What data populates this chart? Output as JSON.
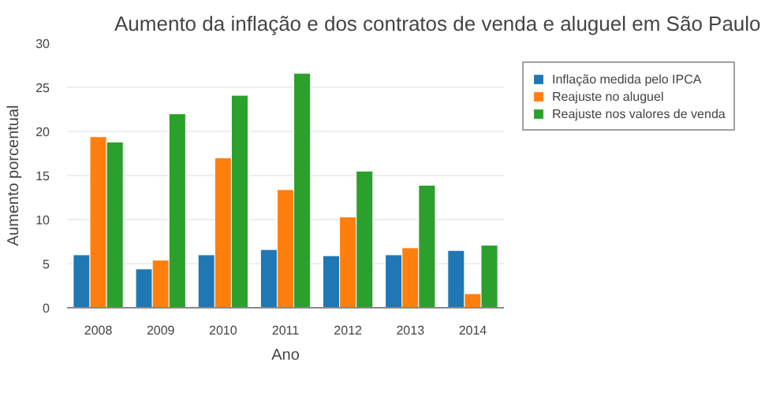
{
  "chart_data": {
    "type": "bar",
    "title": "Aumento da inflação e dos contratos de venda e aluguel em São Paulo",
    "xlabel": "Ano",
    "ylabel": "Aumento porcentual",
    "categories": [
      "2008",
      "2009",
      "2010",
      "2011",
      "2012",
      "2013",
      "2014"
    ],
    "series": [
      {
        "name": "Inflação medida pelo IPCA",
        "color": "#1f77b4",
        "values": [
          6.0,
          4.4,
          6.0,
          6.6,
          5.9,
          6.0,
          6.5
        ]
      },
      {
        "name": "Reajuste no aluguel",
        "color": "#ff7f0e",
        "values": [
          19.4,
          5.4,
          17.0,
          13.4,
          10.3,
          6.8,
          1.6
        ]
      },
      {
        "name": "Reajuste nos valores de venda",
        "color": "#2ca02c",
        "values": [
          18.8,
          22.0,
          24.1,
          26.6,
          15.5,
          13.9,
          7.1
        ]
      }
    ],
    "ylim": [
      0,
      30
    ],
    "yticks": [
      0,
      5,
      10,
      15,
      20,
      25,
      30
    ],
    "grid": "y",
    "legend": "top right"
  }
}
